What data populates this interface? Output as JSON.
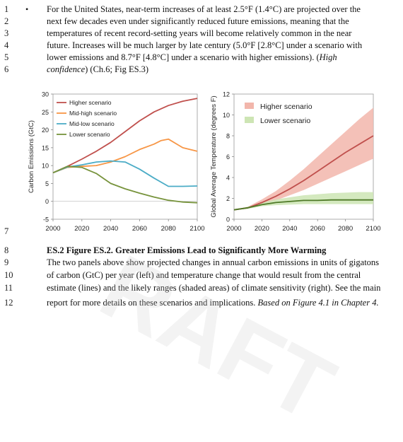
{
  "line_numbers": [
    "1",
    "2",
    "3",
    "4",
    "5",
    "6",
    "7",
    "8",
    "9",
    "10",
    "11",
    "12"
  ],
  "bullet": {
    "glyph": "•",
    "lines": [
      "For the United States, near-term increases of at least 2.5°F (1.4°C) are projected over the",
      "next few decades even under significantly reduced future emissions, meaning that the",
      "temperatures of recent record-setting years will become relatively common in the near",
      "future. Increases will be much larger by late century (5.0°F [2.8°C] under a scenario with",
      "lower emissions and 8.7°F [4.8°C] under a scenario with higher emissions). (",
      ") (Ch.6; Fig ES.3)"
    ],
    "confidence_part1": "High",
    "confidence_part2": "confidence"
  },
  "caption": {
    "title": "ES.2 Figure ES.2. Greater Emissions Lead to Significantly More Warming",
    "lines": [
      "The two panels above show projected changes in annual carbon emissions in units of gigatons",
      "of carbon (GtC) per year (left) and temperature change that would result from the central",
      "estimate (lines) and the likely ranges (shaded areas) of climate sensitivity (right). See the main",
      "report for more details on these scenarios and implications. "
    ],
    "source_italic": "Based on Figure 4.1 in Chapter 4."
  },
  "watermark": "RAFT",
  "chart_data": [
    {
      "type": "line",
      "xlabel": "",
      "ylabel": "Carbon Emissions (GtC)",
      "xlim": [
        2000,
        2100
      ],
      "ylim": [
        -5,
        30
      ],
      "x_ticks": [
        "2000",
        "2020",
        "2040",
        "2060",
        "2080",
        "2100"
      ],
      "y_ticks": [
        "-5",
        "0",
        "5",
        "10",
        "15",
        "20",
        "25",
        "30"
      ],
      "legend_position": "top-left",
      "series": [
        {
          "name": "Higher scenario",
          "color": "#c0504d",
          "x": [
            2000,
            2010,
            2020,
            2030,
            2040,
            2050,
            2060,
            2070,
            2080,
            2090,
            2100
          ],
          "y": [
            8,
            9.8,
            11.8,
            14,
            16.5,
            19.5,
            22.5,
            25,
            26.8,
            28,
            28.8
          ]
        },
        {
          "name": "Mid-high scenario",
          "color": "#f79646",
          "x": [
            2000,
            2010,
            2020,
            2030,
            2040,
            2050,
            2060,
            2070,
            2075,
            2080,
            2090,
            2100
          ],
          "y": [
            8,
            9.5,
            9.8,
            10,
            11,
            12.5,
            14.5,
            16,
            17,
            17.4,
            15,
            14
          ]
        },
        {
          "name": "Mid-low scenario",
          "color": "#4bacc6",
          "x": [
            2000,
            2010,
            2020,
            2030,
            2040,
            2050,
            2060,
            2070,
            2080,
            2090,
            2100
          ],
          "y": [
            8,
            9.6,
            10.2,
            11,
            11.3,
            11,
            9,
            6.5,
            4.2,
            4.2,
            4.3
          ]
        },
        {
          "name": "Lower scenario",
          "color": "#77933c",
          "x": [
            2000,
            2010,
            2020,
            2030,
            2040,
            2050,
            2060,
            2070,
            2080,
            2090,
            2100
          ],
          "y": [
            8,
            9.8,
            9.5,
            7.8,
            5,
            3.5,
            2.3,
            1.2,
            0.3,
            -0.2,
            -0.4
          ]
        }
      ]
    },
    {
      "type": "area",
      "xlabel": "",
      "ylabel": "Global Average Temperature (degrees F)",
      "xlim": [
        2000,
        2100
      ],
      "ylim": [
        0,
        12
      ],
      "x_ticks": [
        "2000",
        "2020",
        "2040",
        "2060",
        "2080",
        "2100"
      ],
      "y_ticks": [
        "0",
        "2",
        "4",
        "6",
        "8",
        "10",
        "12"
      ],
      "legend_position": "top-left",
      "series": [
        {
          "name": "Higher scenario",
          "color": "#c0504d",
          "band_color": "#f2b6ab",
          "x": [
            2000,
            2010,
            2020,
            2030,
            2040,
            2050,
            2060,
            2070,
            2080,
            2090,
            2100
          ],
          "y": [
            0.9,
            1.1,
            1.6,
            2.2,
            2.9,
            3.7,
            4.6,
            5.5,
            6.4,
            7.2,
            8.0
          ],
          "low": [
            0.9,
            1.0,
            1.4,
            1.8,
            2.3,
            2.8,
            3.4,
            4.0,
            4.6,
            5.2,
            5.8
          ],
          "high": [
            0.9,
            1.2,
            1.9,
            2.7,
            3.7,
            4.8,
            6.0,
            7.2,
            8.4,
            9.6,
            10.7
          ]
        },
        {
          "name": "Lower scenario",
          "color": "#4f7a28",
          "band_color": "#cde5b4",
          "x": [
            2000,
            2010,
            2020,
            2030,
            2040,
            2050,
            2060,
            2070,
            2080,
            2090,
            2100
          ],
          "y": [
            0.9,
            1.1,
            1.4,
            1.6,
            1.7,
            1.8,
            1.8,
            1.85,
            1.85,
            1.85,
            1.85
          ],
          "low": [
            0.9,
            1.0,
            1.25,
            1.35,
            1.4,
            1.45,
            1.45,
            1.45,
            1.45,
            1.45,
            1.45
          ],
          "high": [
            0.9,
            1.2,
            1.6,
            1.9,
            2.1,
            2.3,
            2.4,
            2.5,
            2.55,
            2.6,
            2.6
          ]
        }
      ]
    }
  ]
}
